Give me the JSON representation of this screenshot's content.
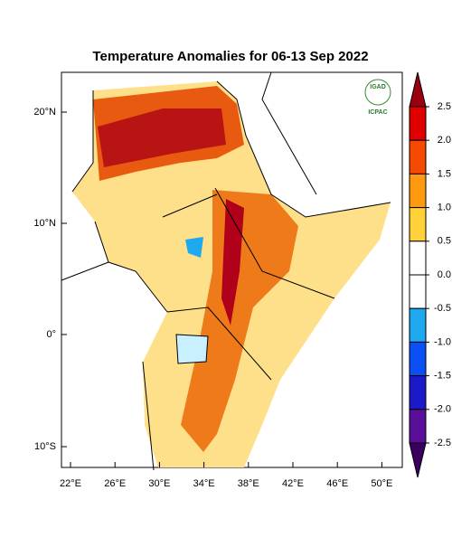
{
  "title": "Temperature Anomalies for 06-13 Sep 2022",
  "logo": {
    "top": "IGAD",
    "bottom": "ICPAC"
  },
  "lat_labels": [
    "20°N",
    "10°N",
    "0°",
    "10°S"
  ],
  "lon_labels": [
    "22°E",
    "26°E",
    "30°E",
    "34°E",
    "38°E",
    "42°E",
    "46°E",
    "50°E"
  ],
  "colorbar": {
    "ticks": [
      {
        "value": 2.5,
        "label": "2.5"
      },
      {
        "value": 2,
        "label": "2.0"
      },
      {
        "value": 1.5,
        "label": "1.5"
      },
      {
        "value": 1,
        "label": "1.0"
      },
      {
        "value": 0.5,
        "label": "0.5"
      },
      {
        "value": 0,
        "label": "0.0"
      },
      {
        "value": -0.5,
        "label": "-0.5"
      },
      {
        "value": -1,
        "label": "-1.0"
      },
      {
        "value": -1.5,
        "label": "-1.5"
      },
      {
        "value": -2,
        "label": "-2.0"
      },
      {
        "value": -2.5,
        "label": "-2.5"
      }
    ],
    "colors": [
      "#e00000",
      "#f54a00",
      "#ff9a10",
      "#ffd23a",
      "#ffffff",
      "#ffffff",
      "#1ea8f0",
      "#0a50f5",
      "#1c1ac8",
      "#5a0f9a"
    ],
    "over_color": "#9a0010",
    "under_color": "#3a0060"
  }
}
